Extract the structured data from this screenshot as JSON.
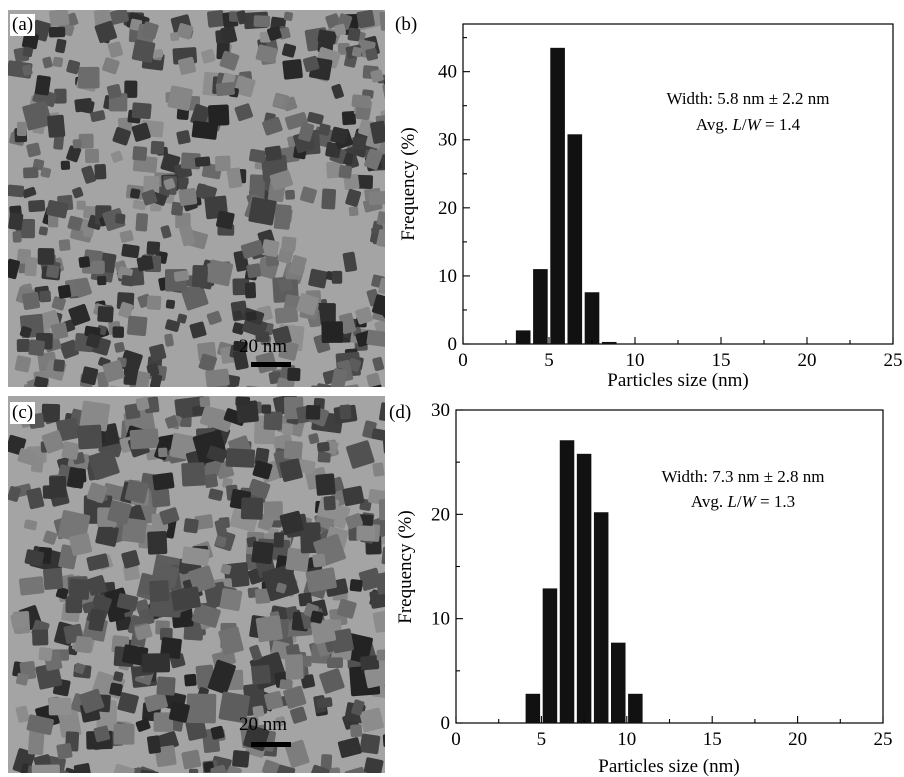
{
  "panels": {
    "a": {
      "label": "(a)",
      "scale_bar": "20 nm"
    },
    "b": {
      "label": "(b)"
    },
    "c": {
      "label": "(c)",
      "scale_bar": "20 nm"
    },
    "d": {
      "label": "(d)"
    }
  },
  "chart_data": [
    {
      "panel": "(b)",
      "type": "bar",
      "xlabel": "Particles size (nm)",
      "ylabel": "Frequency (%)",
      "xlim": [
        0,
        25
      ],
      "ylim": [
        0,
        47
      ],
      "xticks": [
        0,
        5,
        10,
        15,
        20,
        25
      ],
      "yticks": [
        0,
        10,
        20,
        30,
        40
      ],
      "bar_width": 0.85,
      "x": [
        3.5,
        4.5,
        5.5,
        6.5,
        7.5,
        8.5
      ],
      "values": [
        2.0,
        11.0,
        43.5,
        30.8,
        7.6,
        0.3
      ],
      "annotation_line1": "Width: 5.8 nm ± 2.2 nm",
      "annotation_line2_prefix": "Avg. ",
      "annotation_line2_var": "L",
      "annotation_line2_slash": "/",
      "annotation_line2_var2": "W",
      "annotation_line2_value": " = 1.4",
      "grid": false,
      "legend": "none"
    },
    {
      "panel": "(d)",
      "type": "bar",
      "xlabel": "Particles size (nm)",
      "ylabel": "Frequency (%)",
      "xlim": [
        0,
        25
      ],
      "ylim": [
        0,
        30
      ],
      "xticks": [
        0,
        5,
        10,
        15,
        20,
        25
      ],
      "yticks": [
        0,
        10,
        20,
        30
      ],
      "bar_width": 0.85,
      "x": [
        4.5,
        5.5,
        6.5,
        7.5,
        8.5,
        9.5,
        10.5
      ],
      "values": [
        2.8,
        12.9,
        27.1,
        25.8,
        20.2,
        7.7,
        2.8
      ],
      "annotation_line1": "Width: 7.3 nm ± 2.8 nm",
      "annotation_line2_prefix": "Avg. ",
      "annotation_line2_var": "L",
      "annotation_line2_slash": "/",
      "annotation_line2_var2": "W",
      "annotation_line2_value": " = 1.3",
      "grid": false,
      "legend": "none"
    }
  ]
}
